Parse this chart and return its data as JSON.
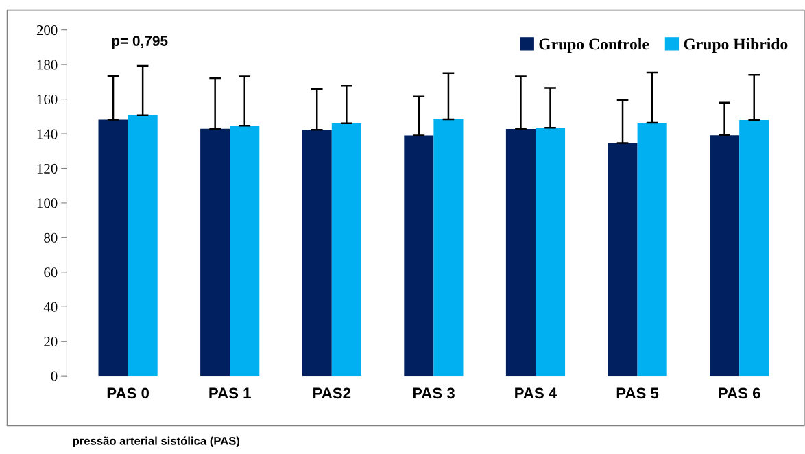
{
  "chart_data": {
    "type": "bar",
    "categories": [
      "PAS 0",
      "PAS 1",
      "PAS2",
      "PAS 3",
      "PAS 4",
      "PAS 5",
      "PAS 6"
    ],
    "series": [
      {
        "name": "Grupo Controle",
        "color": "#002060",
        "values": [
          148.1,
          142.9,
          142.3,
          139.0,
          142.8,
          134.7,
          139.1
        ],
        "errors": [
          [
            148.1,
            173.4
          ],
          [
            142.9,
            172.1
          ],
          [
            142.3,
            165.9
          ],
          [
            139.0,
            161.5
          ],
          [
            142.8,
            173.1
          ],
          [
            134.7,
            159.5
          ],
          [
            139.1,
            158.0
          ]
        ]
      },
      {
        "name": "Grupo Hibrido",
        "color": "#00b0f0",
        "values": [
          150.8,
          144.7,
          146.1,
          148.3,
          143.5,
          146.4,
          147.9
        ],
        "errors": [
          [
            150.8,
            179.3
          ],
          [
            144.7,
            173.1
          ],
          [
            146.1,
            167.7
          ],
          [
            148.3,
            175.0
          ],
          [
            143.5,
            166.4
          ],
          [
            146.4,
            175.3
          ],
          [
            147.9,
            174.0
          ]
        ]
      }
    ],
    "ylim": [
      0,
      200
    ],
    "yticks": [
      0,
      20,
      40,
      60,
      80,
      100,
      120,
      140,
      160,
      180,
      200
    ],
    "grid": false,
    "legend": "top right",
    "annotations": [
      "p= 0,795",
      "pressão arterial sistólica (PAS)"
    ]
  }
}
